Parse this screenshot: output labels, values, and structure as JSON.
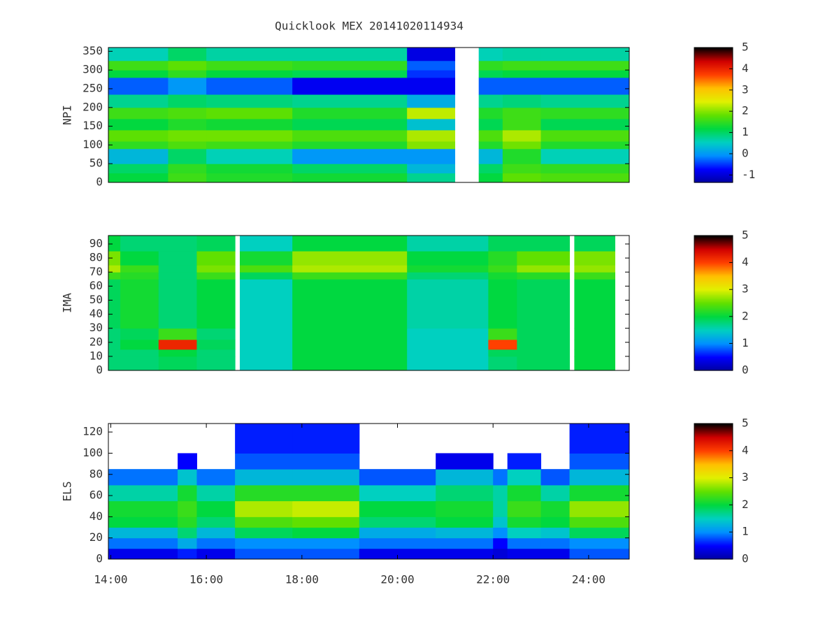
{
  "chart_data": [
    {
      "type": "heatmap",
      "title": "Quicklook MEX 20141020114934",
      "ylabel": "NPI",
      "xlim": [
        13.95,
        24.85
      ],
      "ylim": [
        0,
        360
      ],
      "yticks": [
        0,
        50,
        100,
        150,
        200,
        250,
        300,
        350
      ],
      "x_edges": [
        13.95,
        15.2,
        16.0,
        17.8,
        20.2,
        21.2,
        21.7,
        22.2,
        23.0,
        24.85
      ],
      "y_edges": [
        0,
        25,
        50,
        90,
        110,
        140,
        170,
        200,
        235,
        280,
        300,
        325,
        360
      ],
      "z": [
        [
          1.2,
          1.6,
          1.4,
          1.3,
          0.8,
          null,
          1.2,
          1.8,
          1.7
        ],
        [
          1.0,
          1.5,
          1.3,
          1.0,
          0.3,
          null,
          1.0,
          1.6,
          1.5
        ],
        [
          0.3,
          1.0,
          0.6,
          0.0,
          0.0,
          null,
          0.3,
          1.4,
          0.6
        ],
        [
          1.5,
          1.7,
          1.6,
          1.4,
          2.0,
          null,
          1.4,
          1.9,
          1.4
        ],
        [
          1.8,
          1.9,
          1.9,
          1.7,
          2.2,
          null,
          1.7,
          2.2,
          1.7
        ],
        [
          1.2,
          1.4,
          1.3,
          1.1,
          0.4,
          null,
          1.1,
          1.6,
          1.1
        ],
        [
          1.6,
          1.7,
          1.8,
          1.4,
          2.3,
          null,
          1.4,
          1.6,
          1.5
        ],
        [
          0.8,
          1.0,
          0.9,
          0.8,
          0.2,
          null,
          0.8,
          0.9,
          0.8
        ],
        [
          -0.3,
          0.0,
          -0.3,
          -0.8,
          -0.8,
          null,
          -0.3,
          -0.3,
          -0.3
        ],
        [
          1.2,
          1.5,
          1.2,
          1.1,
          -0.5,
          null,
          1.1,
          1.2,
          1.2
        ],
        [
          1.6,
          1.8,
          1.6,
          1.5,
          -0.3,
          null,
          1.5,
          1.6,
          1.6
        ],
        [
          0.6,
          1.0,
          0.7,
          0.7,
          -0.9,
          null,
          0.6,
          0.7,
          0.7
        ]
      ],
      "clim": [
        -1.35,
        5
      ],
      "cticks": [
        -1,
        0,
        1,
        2,
        3,
        4,
        5
      ],
      "colormap": [
        "#0000a0",
        "#0000ff",
        "#0090ff",
        "#00d0c0",
        "#00d840",
        "#60e000",
        "#e0f000",
        "#ffc000",
        "#ff4000",
        "#d00000",
        "#000000"
      ]
    },
    {
      "type": "heatmap",
      "ylabel": "IMA",
      "xlim": [
        13.95,
        24.85
      ],
      "ylim": [
        0,
        96
      ],
      "yticks": [
        0,
        10,
        20,
        30,
        40,
        50,
        60,
        70,
        80,
        90
      ],
      "x_edges": [
        13.95,
        14.2,
        15.0,
        15.8,
        16.6,
        16.7,
        17.8,
        20.2,
        21.9,
        22.5,
        23.6,
        23.7,
        24.55,
        24.85
      ],
      "y_edges": [
        0,
        10,
        15,
        22,
        30,
        65,
        70,
        75,
        85,
        96
      ],
      "z": [
        [
          1.8,
          1.8,
          1.9,
          1.8,
          null,
          1.5,
          2.0,
          1.5,
          1.8,
          1.9,
          null,
          2.0,
          null
        ],
        [
          1.8,
          1.8,
          2.0,
          1.8,
          null,
          1.5,
          2.0,
          1.5,
          1.9,
          1.9,
          null,
          2.0,
          null
        ],
        [
          1.8,
          2.0,
          4.2,
          1.9,
          null,
          1.5,
          2.0,
          1.5,
          4.0,
          1.9,
          null,
          2.0,
          null
        ],
        [
          1.8,
          1.9,
          2.3,
          1.8,
          null,
          1.5,
          2.0,
          1.5,
          2.3,
          1.9,
          null,
          2.0,
          null
        ],
        [
          1.9,
          2.1,
          1.8,
          2.0,
          null,
          1.5,
          2.0,
          1.6,
          2.0,
          1.9,
          null,
          2.0,
          null
        ],
        [
          2.3,
          2.2,
          1.8,
          2.3,
          null,
          1.9,
          2.3,
          1.8,
          2.1,
          2.2,
          null,
          2.3,
          null
        ],
        [
          2.8,
          2.3,
          1.8,
          2.6,
          null,
          2.4,
          2.8,
          2.1,
          2.3,
          2.7,
          null,
          2.7,
          null
        ],
        [
          2.6,
          2.0,
          1.8,
          2.5,
          null,
          2.1,
          2.7,
          2.0,
          2.2,
          2.5,
          null,
          2.6,
          null
        ],
        [
          2.0,
          1.8,
          1.8,
          1.9,
          null,
          1.5,
          2.0,
          1.6,
          1.9,
          1.9,
          null,
          1.9,
          null
        ]
      ],
      "clim": [
        0,
        5
      ],
      "cticks": [
        0,
        1,
        2,
        3,
        4,
        5
      ],
      "colormap": [
        "#0000a0",
        "#0000ff",
        "#0090ff",
        "#00d0c0",
        "#00d840",
        "#60e000",
        "#e0f000",
        "#ffc000",
        "#ff4000",
        "#d00000",
        "#000000"
      ]
    },
    {
      "type": "heatmap",
      "ylabel": "ELS",
      "xlim": [
        13.95,
        24.85
      ],
      "ylim": [
        0,
        128
      ],
      "yticks": [
        0,
        20,
        40,
        60,
        80,
        100,
        120
      ],
      "xticks": [
        {
          "value": 14,
          "label": "14:00"
        },
        {
          "value": 16,
          "label": "16:00"
        },
        {
          "value": 18,
          "label": "18:00"
        },
        {
          "value": 20,
          "label": "20:00"
        },
        {
          "value": 22,
          "label": "22:00"
        },
        {
          "value": 24,
          "label": "24:00"
        }
      ],
      "x_edges": [
        13.95,
        15.4,
        15.8,
        16.6,
        17.8,
        19.2,
        20.8,
        22.0,
        22.3,
        23.0,
        23.6,
        24.85
      ],
      "y_edges": [
        0,
        10,
        20,
        30,
        40,
        55,
        70,
        85,
        100,
        128
      ],
      "z": [
        [
          0.4,
          0.6,
          0.4,
          0.8,
          0.8,
          0.4,
          0.4,
          0.3,
          0.4,
          0.4,
          0.8
        ],
        [
          0.9,
          1.2,
          0.9,
          1.0,
          1.0,
          0.9,
          0.9,
          0.5,
          0.9,
          0.9,
          1.0
        ],
        [
          1.3,
          1.8,
          1.3,
          1.9,
          2.0,
          1.2,
          1.3,
          1.0,
          1.5,
          1.4,
          1.9
        ],
        [
          2.0,
          2.2,
          1.8,
          2.4,
          2.5,
          1.8,
          2.0,
          1.4,
          2.1,
          2.0,
          2.4
        ],
        [
          2.1,
          2.3,
          2.0,
          2.8,
          2.9,
          2.0,
          2.1,
          1.6,
          2.3,
          2.1,
          2.7
        ],
        [
          1.6,
          2.1,
          1.6,
          2.2,
          2.2,
          1.5,
          1.8,
          1.6,
          2.1,
          1.6,
          2.1
        ],
        [
          0.9,
          1.4,
          0.9,
          1.3,
          1.3,
          0.8,
          1.3,
          0.9,
          1.5,
          0.8,
          1.3
        ],
        [
          null,
          0.5,
          null,
          0.8,
          0.8,
          null,
          0.4,
          null,
          0.6,
          null,
          0.8
        ],
        [
          null,
          null,
          null,
          0.6,
          0.6,
          null,
          null,
          null,
          null,
          null,
          0.6
        ]
      ],
      "clim": [
        0,
        5
      ],
      "cticks": [
        0,
        1,
        2,
        3,
        4,
        5
      ],
      "colormap": [
        "#0000a0",
        "#0000ff",
        "#0090ff",
        "#00d0c0",
        "#00d840",
        "#60e000",
        "#e0f000",
        "#ffc000",
        "#ff4000",
        "#d00000",
        "#000000"
      ]
    }
  ]
}
